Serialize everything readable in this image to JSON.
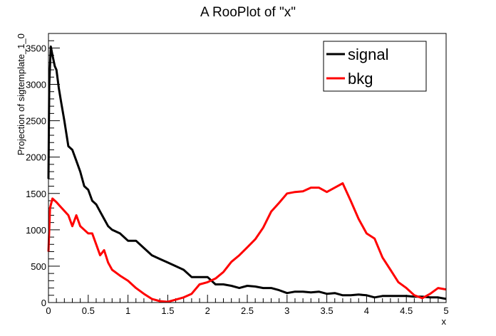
{
  "chart_data": {
    "type": "line",
    "title": "A RooPlot of \"x\"",
    "xlabel": "x",
    "ylabel": "Projection of sigtemplate_1_0",
    "xlim": [
      0,
      5
    ],
    "ylim": [
      0,
      3700
    ],
    "grid": false,
    "legend_position": "top-right",
    "x_ticks": [
      "0",
      "0.5",
      "1",
      "1.5",
      "2",
      "2.5",
      "3",
      "3.5",
      "4",
      "4.5",
      "5"
    ],
    "y_ticks": [
      "0",
      "500",
      "1000",
      "1500",
      "2000",
      "2500",
      "3000",
      "3500"
    ],
    "series": [
      {
        "name": "signal",
        "color": "#000000",
        "x": [
          0,
          0.01,
          0.03,
          0.05,
          0.08,
          0.1,
          0.13,
          0.16,
          0.2,
          0.25,
          0.3,
          0.35,
          0.4,
          0.45,
          0.5,
          0.55,
          0.6,
          0.65,
          0.7,
          0.75,
          0.8,
          0.9,
          1.0,
          1.1,
          1.2,
          1.3,
          1.4,
          1.5,
          1.6,
          1.7,
          1.8,
          1.9,
          2.0,
          2.1,
          2.2,
          2.3,
          2.4,
          2.5,
          2.6,
          2.7,
          2.8,
          2.9,
          3.0,
          3.1,
          3.2,
          3.3,
          3.4,
          3.5,
          3.6,
          3.7,
          3.8,
          3.9,
          4.0,
          4.1,
          4.2,
          4.3,
          4.4,
          4.5,
          4.6,
          4.7,
          4.8,
          4.9,
          5.0
        ],
        "values": [
          1700,
          3000,
          3520,
          3400,
          3250,
          3200,
          2950,
          2750,
          2500,
          2150,
          2100,
          1950,
          1800,
          1600,
          1550,
          1400,
          1350,
          1250,
          1150,
          1050,
          1000,
          950,
          850,
          850,
          750,
          650,
          600,
          550,
          500,
          450,
          350,
          350,
          350,
          250,
          250,
          230,
          200,
          230,
          220,
          200,
          200,
          170,
          130,
          150,
          150,
          140,
          150,
          120,
          130,
          100,
          100,
          110,
          100,
          70,
          90,
          90,
          90,
          90,
          80,
          80,
          70,
          70,
          50
        ]
      },
      {
        "name": "bkg",
        "color": "#ff0000",
        "x": [
          0,
          0.02,
          0.05,
          0.1,
          0.15,
          0.2,
          0.25,
          0.3,
          0.35,
          0.4,
          0.45,
          0.5,
          0.55,
          0.6,
          0.65,
          0.7,
          0.75,
          0.8,
          0.9,
          1.0,
          1.1,
          1.2,
          1.3,
          1.4,
          1.5,
          1.6,
          1.7,
          1.8,
          1.9,
          2.0,
          2.1,
          2.2,
          2.3,
          2.4,
          2.5,
          2.6,
          2.7,
          2.8,
          2.9,
          3.0,
          3.1,
          3.2,
          3.3,
          3.4,
          3.5,
          3.6,
          3.7,
          3.8,
          3.9,
          4.0,
          4.1,
          4.2,
          4.3,
          4.4,
          4.5,
          4.6,
          4.7,
          4.8,
          4.9,
          5.0
        ],
        "values": [
          700,
          1300,
          1430,
          1380,
          1320,
          1260,
          1200,
          1050,
          1200,
          1050,
          1000,
          950,
          950,
          800,
          650,
          720,
          550,
          450,
          370,
          300,
          200,
          120,
          50,
          20,
          10,
          40,
          70,
          120,
          250,
          280,
          330,
          420,
          560,
          650,
          760,
          870,
          1030,
          1250,
          1370,
          1500,
          1520,
          1530,
          1580,
          1580,
          1520,
          1580,
          1640,
          1400,
          1150,
          950,
          880,
          620,
          450,
          280,
          200,
          100,
          60,
          120,
          200,
          180
        ]
      }
    ]
  }
}
